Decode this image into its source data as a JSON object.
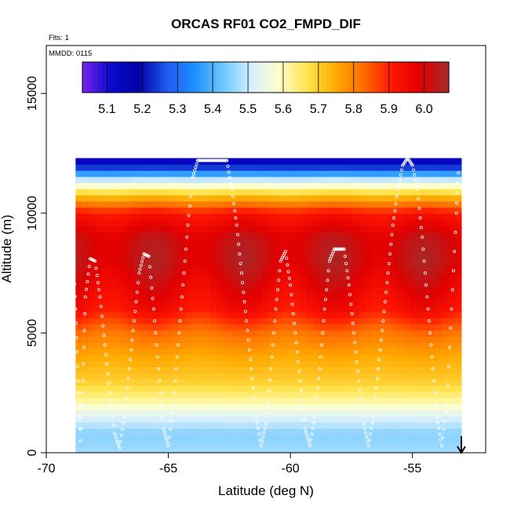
{
  "chart_data": {
    "type": "heatmap",
    "title": "ORCAS RF01 CO2_FMPD_DIF",
    "xlabel": "Latitude (deg N)",
    "ylabel": "Altitude (m)",
    "notes": {
      "flts": "Flts: 1",
      "mmdd": "MMDD: 0115"
    },
    "xlim": [
      -70,
      -52
    ],
    "ylim": [
      0,
      17000
    ],
    "x_ticks": [
      -70,
      -65,
      -60,
      -55
    ],
    "x_tick_labels": [
      "-70",
      "-65",
      "-60",
      "-55"
    ],
    "y_ticks": [
      0,
      5000,
      10000,
      15000
    ],
    "y_tick_labels": [
      "0",
      "5000",
      "10000",
      "15000"
    ],
    "colorbar": {
      "min": 5.03,
      "max": 6.07,
      "ticks": [
        5.1,
        5.2,
        5.3,
        5.4,
        5.5,
        5.6,
        5.7,
        5.8,
        5.9,
        6.0
      ],
      "tick_labels": [
        "5.1",
        "5.2",
        "5.3",
        "5.4",
        "5.5",
        "5.6",
        "5.7",
        "5.8",
        "5.9",
        "6.0"
      ],
      "colors": [
        "#7b22f0",
        "#0a0acd",
        "#0000a8",
        "#1e5af0",
        "#1e90ff",
        "#6ec8ff",
        "#d6efff",
        "#ffffc8",
        "#ffe24a",
        "#ffaa00",
        "#ff6a00",
        "#ff1500",
        "#e00000",
        "#a52a2a"
      ]
    },
    "field": {
      "lat_range": [
        -68.8,
        -53.0
      ],
      "alt_range": [
        0,
        12300
      ],
      "value_profile": [
        {
          "alt": 0,
          "value": 5.47
        },
        {
          "alt": 800,
          "value": 5.45
        },
        {
          "alt": 1500,
          "value": 5.52
        },
        {
          "alt": 2200,
          "value": 5.62
        },
        {
          "alt": 3000,
          "value": 5.7
        },
        {
          "alt": 4000,
          "value": 5.75
        },
        {
          "alt": 5000,
          "value": 5.82
        },
        {
          "alt": 6000,
          "value": 5.93
        },
        {
          "alt": 7000,
          "value": 5.98
        },
        {
          "alt": 8000,
          "value": 6.02
        },
        {
          "alt": 9000,
          "value": 6.01
        },
        {
          "alt": 10000,
          "value": 5.92
        },
        {
          "alt": 10800,
          "value": 5.7
        },
        {
          "alt": 11400,
          "value": 5.5
        },
        {
          "alt": 12000,
          "value": 5.2
        },
        {
          "alt": 12300,
          "value": 5.08
        }
      ]
    },
    "flight_track": {
      "lat": [
        -68.9,
        -68.8,
        -68.7,
        -68.6,
        -68.5,
        -68.4,
        -68.2,
        -68.0,
        -67.8,
        -67.6,
        -67.4,
        -67.2,
        -67.0,
        -66.8,
        -66.6,
        -66.4,
        -66.2,
        -66.0,
        -65.8,
        -65.6,
        -65.4,
        -65.2,
        -65.0,
        -64.8,
        -64.6,
        -64.4,
        -64.2,
        -64.0,
        -63.8,
        -63.6,
        -63.4,
        -63.2,
        -63.0,
        -62.8,
        -62.6,
        -62.4,
        -62.2,
        -62.0,
        -61.8,
        -61.6,
        -61.4,
        -61.2,
        -61.0,
        -60.8,
        -60.6,
        -60.4,
        -60.2,
        -60.0,
        -59.8,
        -59.6,
        -59.4,
        -59.2,
        -59.0,
        -58.8,
        -58.6,
        -58.4,
        -58.2,
        -58.0,
        -57.8,
        -57.6,
        -57.4,
        -57.2,
        -57.0,
        -56.8,
        -56.6,
        -56.4,
        -56.2,
        -56.0,
        -55.8,
        -55.6,
        -55.4,
        -55.2,
        -55.0,
        -54.8,
        -54.6,
        -54.4,
        -54.2,
        -54.0,
        -53.8,
        -53.6,
        -53.4,
        -53.2,
        -53.1
      ],
      "alt": [
        8600,
        6000,
        3000,
        500,
        3000,
        6500,
        8100,
        8000,
        6500,
        4500,
        2500,
        800,
        200,
        1500,
        3500,
        5500,
        7500,
        8300,
        8200,
        6000,
        3500,
        1000,
        300,
        2000,
        4500,
        7000,
        9500,
        11500,
        12200,
        12200,
        12200,
        12200,
        12200,
        12200,
        12200,
        11000,
        9500,
        7500,
        5500,
        3500,
        1500,
        300,
        1200,
        3500,
        6000,
        8000,
        8400,
        7000,
        5000,
        3000,
        1000,
        300,
        1500,
        3500,
        6000,
        8000,
        8500,
        8500,
        8500,
        7000,
        5000,
        3000,
        1200,
        300,
        1500,
        3500,
        5500,
        7500,
        9500,
        11000,
        12000,
        12300,
        12000,
        11000,
        9000,
        6500,
        4000,
        1500,
        300,
        2000,
        6000,
        10000,
        12100
      ]
    }
  }
}
